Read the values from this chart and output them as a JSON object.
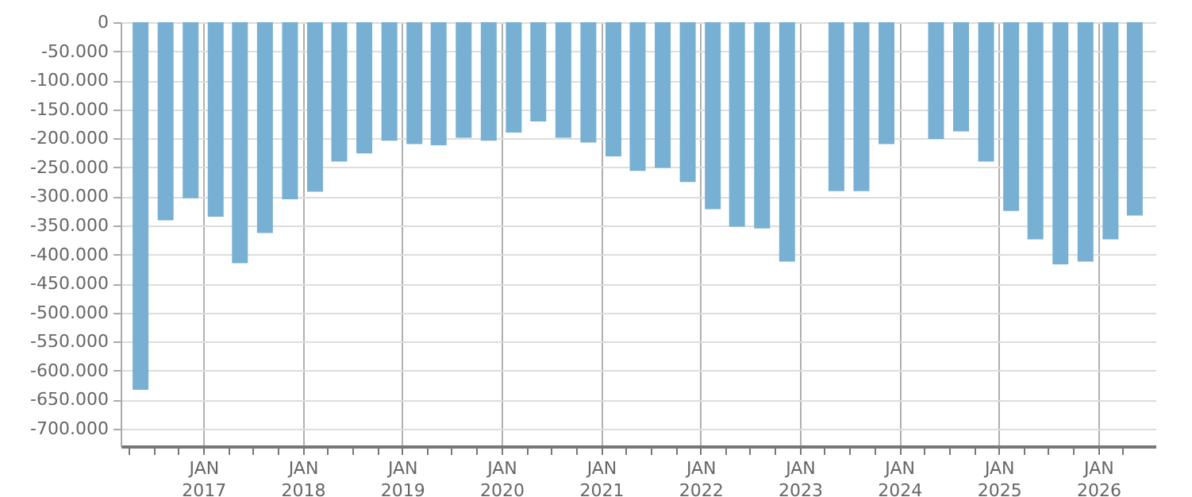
{
  "chart_data": {
    "type": "bar",
    "color": "#78b0d3",
    "grid": true,
    "x": [
      "2016-05-15",
      "2016-08-15",
      "2016-11-15",
      "2017-02-15",
      "2017-05-15",
      "2017-08-15",
      "2017-11-15",
      "2018-02-15",
      "2018-05-15",
      "2018-08-15",
      "2018-11-15",
      "2019-02-15",
      "2019-05-15",
      "2019-08-15",
      "2019-11-15",
      "2020-02-15",
      "2020-05-15",
      "2020-08-15",
      "2020-11-15",
      "2021-02-15",
      "2021-05-15",
      "2021-08-15",
      "2021-11-15",
      "2022-02-15",
      "2022-05-15",
      "2022-08-15",
      "2022-11-15",
      "2023-02-15",
      "2023-05-15",
      "2023-08-15",
      "2023-11-15",
      "2024-02-15",
      "2024-05-15",
      "2024-08-15",
      "2024-11-15",
      "2025-02-15",
      "2025-05-15",
      "2025-08-15",
      "2025-11-15",
      "2026-02-15",
      "2026-05-15"
    ],
    "values": [
      -633000,
      -341000,
      -303000,
      -335000,
      -415000,
      -363000,
      -305000,
      -292000,
      -240000,
      -226000,
      -204000,
      -210000,
      -212000,
      -199000,
      -204000,
      -190000,
      -171000,
      -199000,
      -207000,
      -231000,
      -256000,
      -251000,
      -275000,
      -322000,
      -352000,
      -355000,
      -412000,
      null,
      -291000,
      -291000,
      -210000,
      null,
      -201000,
      -188000,
      -240000,
      -325000,
      -374000,
      -417000,
      -412000,
      -374000,
      -333000
    ],
    "xlim": [
      "2016-04-01",
      "2026-07-01"
    ],
    "xticks": [
      {
        "value": "2016-04-01",
        "label": null
      },
      {
        "value": "2016-07-01",
        "label": null
      },
      {
        "value": "2016-10-01",
        "label": null
      },
      {
        "value": "2017-01-01",
        "label": "JAN\n2017"
      },
      {
        "value": "2017-04-01",
        "label": null
      },
      {
        "value": "2017-07-01",
        "label": null
      },
      {
        "value": "2017-10-01",
        "label": null
      },
      {
        "value": "2018-01-01",
        "label": "JAN\n2018"
      },
      {
        "value": "2018-04-01",
        "label": null
      },
      {
        "value": "2018-07-01",
        "label": null
      },
      {
        "value": "2018-10-01",
        "label": null
      },
      {
        "value": "2019-01-01",
        "label": "JAN\n2019"
      },
      {
        "value": "2019-04-01",
        "label": null
      },
      {
        "value": "2019-07-01",
        "label": null
      },
      {
        "value": "2019-10-01",
        "label": null
      },
      {
        "value": "2020-01-01",
        "label": "JAN\n2020"
      },
      {
        "value": "2020-04-01",
        "label": null
      },
      {
        "value": "2020-07-01",
        "label": null
      },
      {
        "value": "2020-10-01",
        "label": null
      },
      {
        "value": "2021-01-01",
        "label": "JAN\n2021"
      },
      {
        "value": "2021-04-01",
        "label": null
      },
      {
        "value": "2021-07-01",
        "label": null
      },
      {
        "value": "2021-10-01",
        "label": null
      },
      {
        "value": "2022-01-01",
        "label": "JAN\n2022"
      },
      {
        "value": "2022-04-01",
        "label": null
      },
      {
        "value": "2022-07-01",
        "label": null
      },
      {
        "value": "2022-10-01",
        "label": null
      },
      {
        "value": "2023-01-01",
        "label": "JAN\n2023"
      },
      {
        "value": "2023-04-01",
        "label": null
      },
      {
        "value": "2023-07-01",
        "label": null
      },
      {
        "value": "2023-10-01",
        "label": null
      },
      {
        "value": "2024-01-01",
        "label": "JAN\n2024"
      },
      {
        "value": "2024-04-01",
        "label": null
      },
      {
        "value": "2024-07-01",
        "label": null
      },
      {
        "value": "2024-10-01",
        "label": null
      },
      {
        "value": "2025-01-01",
        "label": "JAN\n2025"
      },
      {
        "value": "2025-04-01",
        "label": null
      },
      {
        "value": "2025-07-01",
        "label": null
      },
      {
        "value": "2025-10-01",
        "label": null
      },
      {
        "value": "2026-01-01",
        "label": "JAN\n2026"
      },
      {
        "value": "2026-04-01",
        "label": null
      }
    ],
    "ylim": [
      -730000,
      0
    ],
    "yticks": [
      {
        "value": 0,
        "label": "0"
      },
      {
        "value": -50000,
        "label": "-50.000"
      },
      {
        "value": -100000,
        "label": "-100.000"
      },
      {
        "value": -150000,
        "label": "-150.000"
      },
      {
        "value": -200000,
        "label": "-200.000"
      },
      {
        "value": -250000,
        "label": "-250.000"
      },
      {
        "value": -300000,
        "label": "-300.000"
      },
      {
        "value": -350000,
        "label": "-350.000"
      },
      {
        "value": -400000,
        "label": "-400.000"
      },
      {
        "value": -450000,
        "label": "-450.000"
      },
      {
        "value": -500000,
        "label": "-500.000"
      },
      {
        "value": -550000,
        "label": "-550.000"
      },
      {
        "value": -600000,
        "label": "-600.000"
      },
      {
        "value": -650000,
        "label": "-650.000"
      },
      {
        "value": -700000,
        "label": "-700.000"
      }
    ]
  }
}
